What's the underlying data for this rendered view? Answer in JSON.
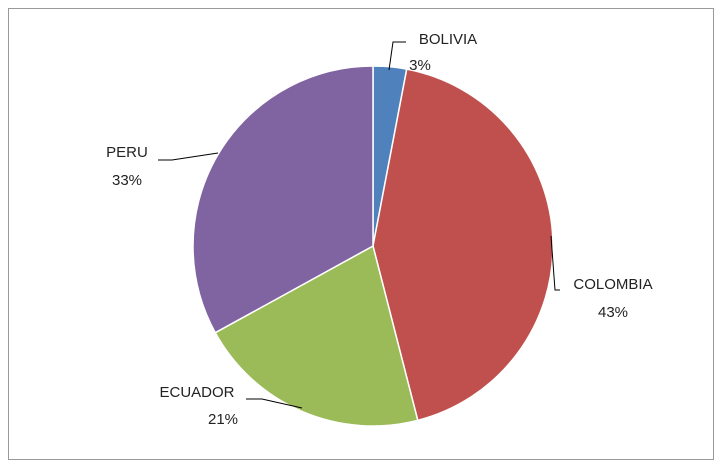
{
  "chart_data": {
    "type": "pie",
    "categories": [
      "BOLIVIA",
      "COLOMBIA",
      "ECUADOR",
      "PERU"
    ],
    "values": [
      3,
      43,
      21,
      33
    ],
    "value_labels": [
      "3%",
      "43%",
      "21%",
      "33%"
    ],
    "colors": [
      "#4f81bd",
      "#c0504d",
      "#9bbb59",
      "#8064a2"
    ]
  }
}
